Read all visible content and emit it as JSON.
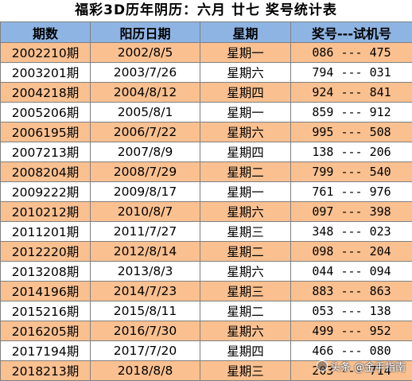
{
  "title": "福彩3D历年阴历：六月 廿七 奖号统计表",
  "headers": [
    "期数",
    "阳历日期",
    "星期",
    "奖号---试机号"
  ],
  "rows": [
    {
      "period": "2002210期",
      "date": "2002/8/5",
      "weekday": "星期一",
      "numbers": "086 --- 475"
    },
    {
      "period": "2003201期",
      "date": "2003/7/26",
      "weekday": "星期六",
      "numbers": "794 --- 031"
    },
    {
      "period": "2004218期",
      "date": "2004/8/12",
      "weekday": "星期四",
      "numbers": "924 --- 841"
    },
    {
      "period": "2005206期",
      "date": "2005/8/1",
      "weekday": "星期一",
      "numbers": "859 --- 912"
    },
    {
      "period": "2006195期",
      "date": "2006/7/22",
      "weekday": "星期六",
      "numbers": "995 --- 508"
    },
    {
      "period": "2007213期",
      "date": "2007/8/9",
      "weekday": "星期四",
      "numbers": "138 --- 206"
    },
    {
      "period": "2008204期",
      "date": "2008/7/29",
      "weekday": "星期二",
      "numbers": "799 --- 540"
    },
    {
      "period": "2009222期",
      "date": "2009/8/17",
      "weekday": "星期一",
      "numbers": "761 --- 976"
    },
    {
      "period": "2010212期",
      "date": "2010/8/7",
      "weekday": "星期六",
      "numbers": "097 --- 398"
    },
    {
      "period": "2011201期",
      "date": "2011/7/27",
      "weekday": "星期三",
      "numbers": "348 --- 023"
    },
    {
      "period": "2012220期",
      "date": "2012/8/14",
      "weekday": "星期二",
      "numbers": "098 --- 204"
    },
    {
      "period": "2013208期",
      "date": "2013/8/3",
      "weekday": "星期六",
      "numbers": "044 --- 094"
    },
    {
      "period": "2014196期",
      "date": "2014/7/23",
      "weekday": "星期三",
      "numbers": "883 --- 863"
    },
    {
      "period": "2015216期",
      "date": "2015/8/11",
      "weekday": "星期二",
      "numbers": "053 --- 138"
    },
    {
      "period": "2016205期",
      "date": "2016/7/30",
      "weekday": "星期六",
      "numbers": "499 --- 952"
    },
    {
      "period": "2017194期",
      "date": "2017/7/20",
      "weekday": "星期四",
      "numbers": "466 --- 080"
    },
    {
      "period": "2018213期",
      "date": "2018/8/8",
      "weekday": "星期三",
      "numbers": "203 --- 714"
    }
  ],
  "watermark": "头条 @金手指南",
  "colors": {
    "header_bg": "#8EB4E3",
    "odd_row_bg": "#FAC090",
    "even_row_bg": "#FFFFFF",
    "grid": "#808080"
  }
}
